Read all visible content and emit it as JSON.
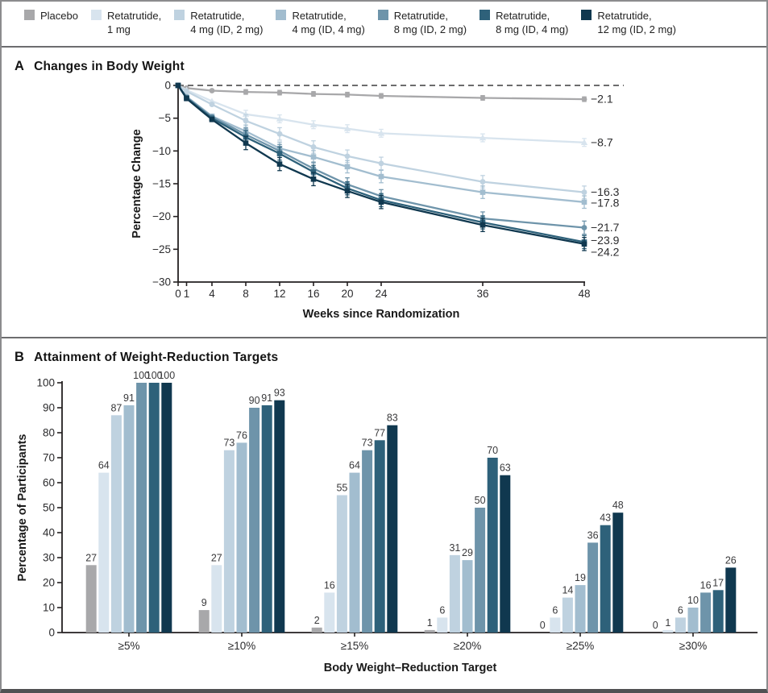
{
  "figure": {
    "panel_a": {
      "letter": "A",
      "title": "Changes in Body Weight"
    },
    "panel_b": {
      "letter": "B",
      "title": "Attainment of Weight-Reduction Targets"
    }
  },
  "colors": {
    "placebo": "#a8a8aa",
    "retatrutide_1mg": "#d8e4ee",
    "retatrutide_4mg_id2": "#bfd2e0",
    "retatrutide_4mg_id4": "#a2bdcf",
    "retatrutide_8mg_id2": "#6e94aa",
    "retatrutide_8mg_id4": "#2e617a",
    "retatrutide_12mg_id2": "#10384f",
    "axis": "#231f20",
    "zero_line": "#3b3b3d"
  },
  "legend": {
    "items": [
      {
        "id": "placebo",
        "lines": [
          "Placebo"
        ],
        "color": "#a8a8aa"
      },
      {
        "id": "retatrutide-1mg",
        "lines": [
          "Retatrutide,",
          "1 mg"
        ],
        "color": "#d8e4ee"
      },
      {
        "id": "retatrutide-4mg-id2",
        "lines": [
          "Retatrutide,",
          "4 mg (ID, 2 mg)"
        ],
        "color": "#bfd2e0"
      },
      {
        "id": "retatrutide-4mg-id4",
        "lines": [
          "Retatrutide,",
          "4 mg (ID, 4 mg)"
        ],
        "color": "#a2bdcf"
      },
      {
        "id": "retatrutide-8mg-id2",
        "lines": [
          "Retatrutide,",
          "8 mg (ID, 2 mg)"
        ],
        "color": "#6e94aa"
      },
      {
        "id": "retatrutide-8mg-id4",
        "lines": [
          "Retatrutide,",
          "8 mg (ID, 4 mg)"
        ],
        "color": "#2e617a"
      },
      {
        "id": "retatrutide-12mg-id2",
        "lines": [
          "Retatrutide,",
          "12 mg (ID, 2 mg)"
        ],
        "color": "#10384f"
      }
    ]
  },
  "chart_data": [
    {
      "type": "line",
      "panel": "A",
      "title": "Changes in Body Weight",
      "xlabel": "Weeks since Randomization",
      "ylabel": "Percentage Change",
      "x": [
        0,
        1,
        4,
        8,
        12,
        16,
        20,
        24,
        36,
        48
      ],
      "xticks": [
        0,
        1,
        4,
        8,
        12,
        16,
        20,
        24,
        36,
        48
      ],
      "ylim": [
        -30,
        0
      ],
      "yticks": [
        0,
        -5,
        -10,
        -15,
        -20,
        -25,
        -30
      ],
      "zero_line_dashed": true,
      "legend_position": "top",
      "grid": false,
      "series": [
        {
          "id": "placebo",
          "name": "Placebo",
          "color": "#a8a8aa",
          "marker": "circle",
          "se": 0.35,
          "end_label": "−2.1",
          "label_dy": 0,
          "values": [
            0,
            -0.4,
            -0.8,
            -1.0,
            -1.1,
            -1.3,
            -1.4,
            -1.6,
            -1.9,
            -2.1
          ]
        },
        {
          "id": "retatrutide-1mg",
          "name": "Retatrutide, 1 mg",
          "color": "#d8e4ee",
          "marker": "triangle",
          "se": 0.6,
          "end_label": "−8.7",
          "label_dy": 0,
          "values": [
            0,
            -0.7,
            -2.4,
            -4.4,
            -5.1,
            -6.0,
            -6.6,
            -7.3,
            -8.0,
            -8.7
          ]
        },
        {
          "id": "retatrutide-4mg-id2",
          "name": "Retatrutide, 4 mg (ID, 2 mg)",
          "color": "#bfd2e0",
          "marker": "circle",
          "se": 0.95,
          "end_label": "−16.3",
          "label_dy": 0,
          "values": [
            0,
            -0.9,
            -2.9,
            -5.4,
            -7.4,
            -9.4,
            -10.8,
            -11.9,
            -14.7,
            -16.3
          ]
        },
        {
          "id": "retatrutide-4mg-id4",
          "name": "Retatrutide, 4 mg (ID, 4 mg)",
          "color": "#a2bdcf",
          "marker": "square",
          "se": 0.95,
          "end_label": "−17.8",
          "label_dy": 1,
          "values": [
            0,
            -1.7,
            -4.7,
            -7.0,
            -9.6,
            -10.9,
            -12.4,
            -13.9,
            -16.3,
            -17.8
          ]
        },
        {
          "id": "retatrutide-8mg-id2",
          "name": "Retatrutide, 8 mg (ID, 2 mg)",
          "color": "#6e94aa",
          "marker": "circle",
          "se": 1.0,
          "end_label": "−21.7",
          "label_dy": 0,
          "values": [
            0,
            -1.8,
            -4.8,
            -7.5,
            -10.0,
            -12.7,
            -15.1,
            -16.9,
            -20.3,
            -21.7
          ]
        },
        {
          "id": "retatrutide-8mg-id4",
          "name": "Retatrutide, 8 mg (ID, 4 mg)",
          "color": "#2e617a",
          "marker": "square",
          "se": 1.0,
          "end_label": "−23.9",
          "label_dy": -2,
          "values": [
            0,
            -1.9,
            -5.0,
            -7.9,
            -10.4,
            -13.2,
            -15.7,
            -17.5,
            -20.9,
            -23.9
          ]
        },
        {
          "id": "retatrutide-12mg-id2",
          "name": "Retatrutide, 12 mg (ID, 2 mg)",
          "color": "#10384f",
          "marker": "square",
          "se": 1.0,
          "end_label": "−24.2",
          "label_dy": 10,
          "values": [
            0,
            -2.0,
            -5.2,
            -8.8,
            -12.0,
            -14.3,
            -16.1,
            -17.8,
            -21.3,
            -24.2
          ]
        }
      ]
    },
    {
      "type": "bar",
      "panel": "B",
      "title": "Attainment of Weight-Reduction Targets",
      "xlabel": "Body Weight–Reduction Target",
      "ylabel": "Percentage of Participants",
      "categories": [
        "≥5%",
        "≥10%",
        "≥15%",
        "≥20%",
        "≥25%",
        "≥30%"
      ],
      "ylim": [
        0,
        100
      ],
      "yticks": [
        0,
        10,
        20,
        30,
        40,
        50,
        60,
        70,
        80,
        90,
        100
      ],
      "grid": false,
      "series": [
        {
          "id": "placebo",
          "name": "Placebo",
          "color": "#a8a8aa",
          "values": [
            27,
            9,
            2,
            1,
            0,
            0
          ]
        },
        {
          "id": "retatrutide-1mg",
          "name": "Retatrutide, 1 mg",
          "color": "#d8e4ee",
          "values": [
            64,
            27,
            16,
            6,
            6,
            1
          ]
        },
        {
          "id": "retatrutide-4mg-id2",
          "name": "Retatrutide, 4 mg (ID, 2 mg)",
          "color": "#bfd2e0",
          "values": [
            87,
            73,
            55,
            31,
            14,
            6
          ]
        },
        {
          "id": "retatrutide-4mg-id4",
          "name": "Retatrutide, 4 mg (ID, 4 mg)",
          "color": "#a2bdcf",
          "values": [
            91,
            76,
            64,
            29,
            19,
            10
          ]
        },
        {
          "id": "retatrutide-8mg-id2",
          "name": "Retatrutide, 8 mg (ID, 2 mg)",
          "color": "#6e94aa",
          "values": [
            100,
            90,
            73,
            50,
            36,
            16
          ]
        },
        {
          "id": "retatrutide-8mg-id4",
          "name": "Retatrutide, 8 mg (ID, 4 mg)",
          "color": "#2e617a",
          "values": [
            100,
            91,
            77,
            70,
            43,
            17
          ]
        },
        {
          "id": "retatrutide-12mg-id2",
          "name": "Retatrutide, 12 mg (ID, 2 mg)",
          "color": "#10384f",
          "values": [
            100,
            93,
            83,
            63,
            48,
            26
          ]
        }
      ]
    }
  ]
}
